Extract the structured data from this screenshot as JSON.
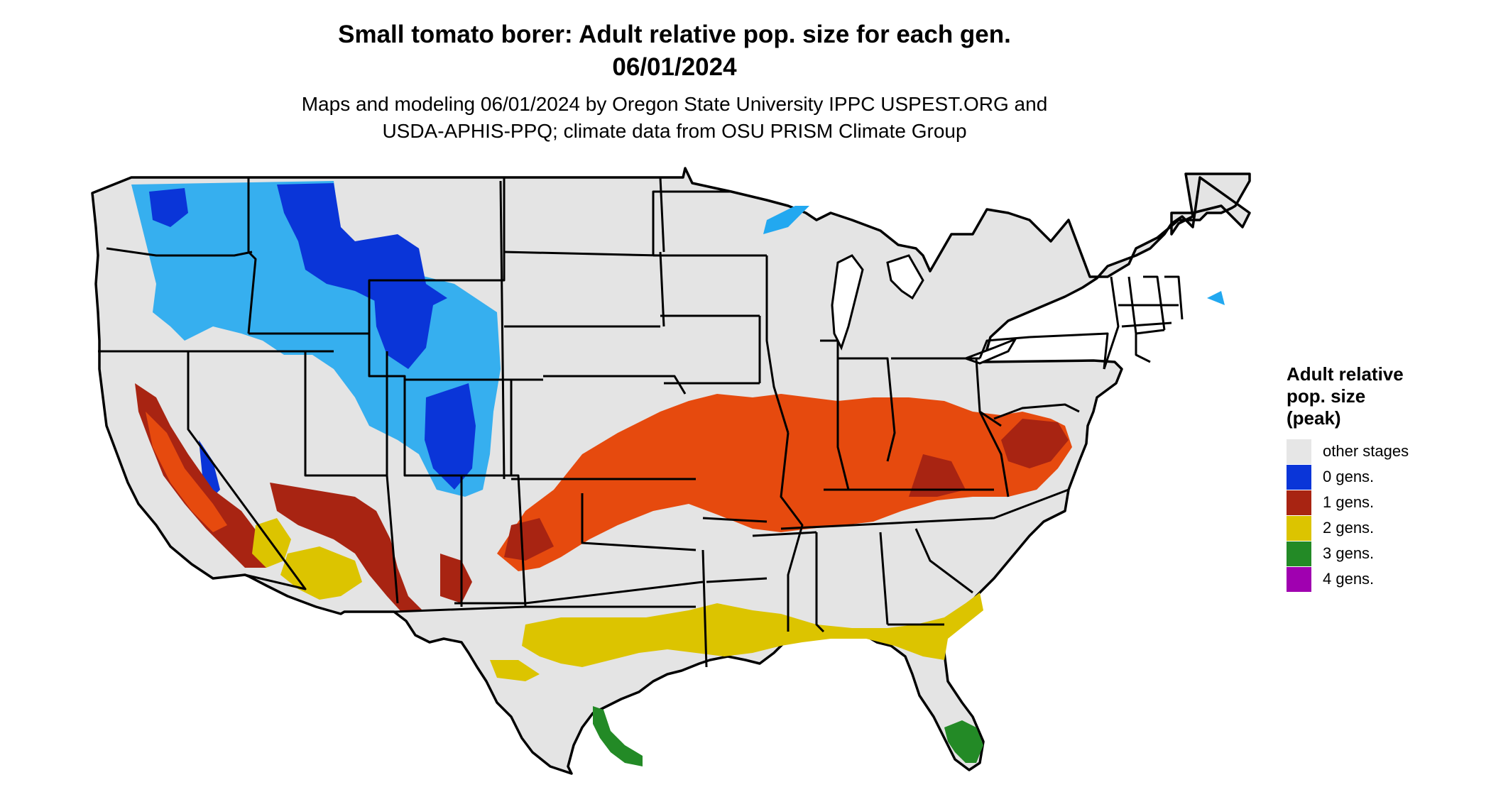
{
  "title_line1": "Small tomato borer: Adult relative pop. size for each gen.",
  "title_line2": "06/01/2024",
  "subtitle_line1": "Maps and modeling 06/01/2024 by Oregon State University IPPC USPEST.ORG and",
  "subtitle_line2": "USDA-APHIS-PPQ; climate data from OSU PRISM Climate Group",
  "legend": {
    "title_line1": "Adult relative",
    "title_line2": "pop. size",
    "title_line3": "(peak)",
    "items": [
      {
        "label": "other stages",
        "color": "#e6e6e6"
      },
      {
        "label": "0 gens.",
        "color": "#0a35d8"
      },
      {
        "label": "1 gens.",
        "color": "#a82412"
      },
      {
        "label": "2 gens.",
        "color": "#dcc400"
      },
      {
        "label": "3 gens.",
        "color": "#238a26"
      },
      {
        "label": "4 gens.",
        "color": "#a000b0"
      }
    ]
  },
  "map_colors": {
    "land": "#e4e4e4",
    "border": "#000000",
    "zero_dark": "#0a35d8",
    "zero_light": "#22a8f0",
    "one_red": "#e64a0e",
    "one_dark": "#a82412",
    "two_yellow": "#dcc400",
    "three_green": "#238a26"
  }
}
